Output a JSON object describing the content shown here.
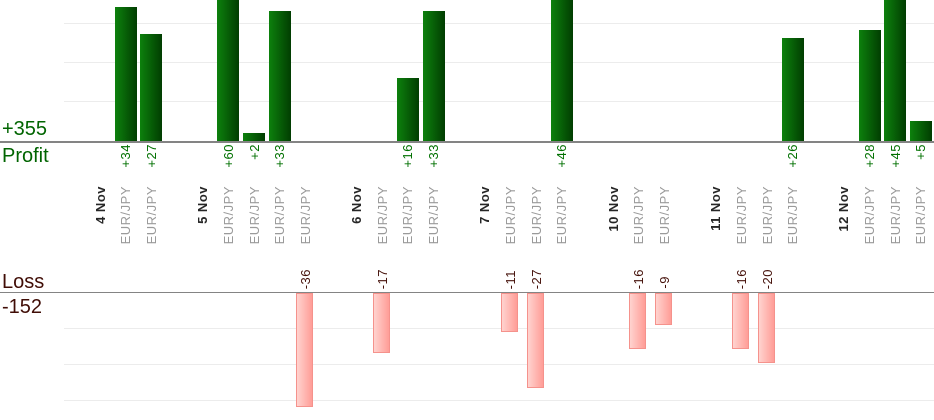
{
  "summary": {
    "profit_total": "+355",
    "profit_label": "Profit",
    "loss_label": "Loss",
    "loss_total": "-152"
  },
  "chart_data": {
    "type": "bar",
    "title": "",
    "xlabel": "",
    "ylabel": "",
    "legend": "none",
    "grid": true,
    "value_labels_rotated": true,
    "profit_axis_visible_range": [
      0,
      35
    ],
    "loss_axis_visible_range": [
      0,
      -32
    ],
    "groups": [
      {
        "date": "4 Nov",
        "trades": [
          {
            "pair": "EUR/JPY",
            "value": 34
          },
          {
            "pair": "EUR/JPY",
            "value": 27
          }
        ]
      },
      {
        "date": "5 Nov",
        "trades": [
          {
            "pair": "EUR/JPY",
            "value": 60
          },
          {
            "pair": "EUR/JPY",
            "value": 2
          },
          {
            "pair": "EUR/JPY",
            "value": 33
          },
          {
            "pair": "EUR/JPY",
            "value": -36
          }
        ]
      },
      {
        "date": "6 Nov",
        "trades": [
          {
            "pair": "EUR/JPY",
            "value": -17
          },
          {
            "pair": "EUR/JPY",
            "value": 16
          },
          {
            "pair": "EUR/JPY",
            "value": 33
          }
        ]
      },
      {
        "date": "7 Nov",
        "trades": [
          {
            "pair": "EUR/JPY",
            "value": -11
          },
          {
            "pair": "EUR/JPY",
            "value": -27
          },
          {
            "pair": "EUR/JPY",
            "value": 46
          }
        ]
      },
      {
        "date": "10 Nov",
        "trades": [
          {
            "pair": "EUR/JPY",
            "value": -16
          },
          {
            "pair": "EUR/JPY",
            "value": -9
          }
        ]
      },
      {
        "date": "11 Nov",
        "trades": [
          {
            "pair": "EUR/JPY",
            "value": -16
          },
          {
            "pair": "EUR/JPY",
            "value": -20
          },
          {
            "pair": "EUR/JPY",
            "value": 26
          }
        ]
      },
      {
        "date": "12 Nov",
        "trades": [
          {
            "pair": "EUR/JPY",
            "value": 28
          },
          {
            "pair": "EUR/JPY",
            "value": 45
          },
          {
            "pair": "EUR/JPY",
            "value": 5
          }
        ]
      }
    ],
    "totals": {
      "profit": 355,
      "loss": -152
    },
    "colors": {
      "profit_total_text": "#006400",
      "profit_value_text": "#007000",
      "loss_total_text": "#400d06",
      "loss_value_text": "#45110a",
      "profit_bar_gradient": [
        "#0d810d",
        "#013d01"
      ],
      "loss_bar_gradient": [
        "#ffd3cf",
        "#ff9d97"
      ],
      "loss_bar_border": "#f5928c",
      "date_label": "#262626",
      "pair_label": "#9a9a9a",
      "axis_line": "#848484",
      "gridline": "#ececec"
    }
  }
}
